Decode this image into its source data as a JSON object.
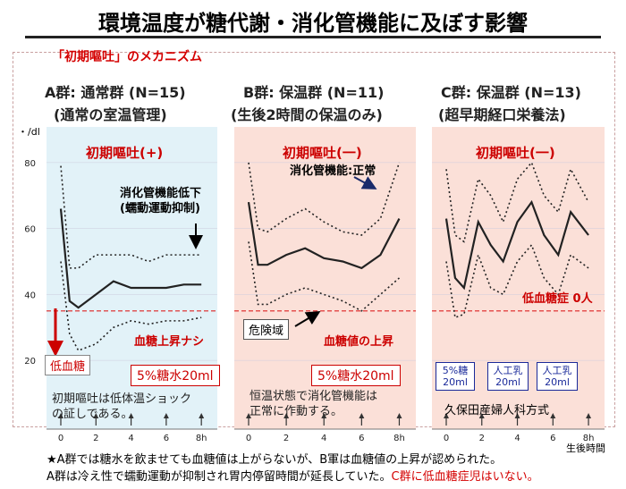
{
  "title": "環境温度が糖代謝・消化管機能に及ぼす影響",
  "subtitle": "「初期嘔吐」のメカニズム",
  "y_unit": "・/dl",
  "x_unit": "生後時間",
  "chart_data": [
    {
      "type": "line",
      "group": "A群: 通常群 (N=15)",
      "group_sub": "(通常の室温管理)",
      "background": "#e2f2f8",
      "x": [
        0,
        0.5,
        1,
        2,
        3,
        4,
        5,
        6,
        7,
        8
      ],
      "x_ticks": [
        "0",
        "2",
        "4",
        "6",
        "8h"
      ],
      "y_ticks": [
        20,
        40,
        60,
        80
      ],
      "ylim": [
        10,
        90
      ],
      "threshold": 35,
      "series": [
        {
          "style": "solid",
          "values": [
            66,
            38,
            36,
            40,
            44,
            42,
            42,
            42,
            43,
            43
          ]
        },
        {
          "style": "dotted-upper",
          "values": [
            79,
            48,
            48,
            52,
            52,
            52,
            50,
            52,
            52,
            52
          ]
        },
        {
          "style": "dotted-lower",
          "values": [
            50,
            28,
            23,
            25,
            30,
            32,
            31,
            32,
            32,
            33
          ]
        }
      ],
      "heading": "初期嘔吐(+)",
      "callout": [
        "消化管機能低下",
        "(蠕動運動抑制)"
      ],
      "box_label": "低血糖",
      "red_text": "血糖上昇ナシ",
      "red_box": "5%糖水20ml",
      "note": [
        "初期嘔吐は低体温ショック",
        "の証しである。"
      ]
    },
    {
      "type": "line",
      "group": "B群: 保温群 (N=11)",
      "group_sub": "(生後2時間の保温のみ)",
      "background": "#fbe0d8",
      "x": [
        0,
        0.5,
        1,
        2,
        3,
        4,
        5,
        6,
        7,
        8
      ],
      "x_ticks": [
        "0",
        "2",
        "4",
        "6",
        "8h"
      ],
      "y_ticks": [
        20,
        40,
        60,
        80
      ],
      "ylim": [
        10,
        90
      ],
      "threshold": 35,
      "series": [
        {
          "style": "solid",
          "values": [
            68,
            49,
            49,
            52,
            54,
            51,
            50,
            48,
            52,
            63
          ]
        },
        {
          "style": "dotted-upper",
          "values": [
            80,
            60,
            59,
            63,
            66,
            62,
            59,
            58,
            63,
            80
          ]
        },
        {
          "style": "dotted-lower",
          "values": [
            56,
            37,
            37,
            40,
            42,
            40,
            38,
            35,
            40,
            45
          ]
        }
      ],
      "heading": "初期嘔吐(一)",
      "callout": [
        "消化管機能:正常"
      ],
      "box_label": "危険域",
      "red_text": "血糖値の上昇",
      "red_box": "5%糖水20ml",
      "note": [
        "恒温状態で消化管機能は",
        "正常に作動する。"
      ]
    },
    {
      "type": "line",
      "group": "C群: 保温群 (N=13)",
      "group_sub": "(超早期経口栄養法)",
      "background": "#fbe0d8",
      "x": [
        0,
        0.5,
        1,
        1.8,
        2.5,
        3.2,
        4,
        4.8,
        5.5,
        6.3,
        7,
        8
      ],
      "x_ticks": [
        "0",
        "2",
        "4",
        "6",
        "8h"
      ],
      "y_ticks": [
        20,
        40,
        60,
        80
      ],
      "ylim": [
        10,
        90
      ],
      "threshold": 35,
      "series": [
        {
          "style": "solid",
          "values": [
            63,
            45,
            42,
            62,
            55,
            50,
            62,
            68,
            58,
            52,
            65,
            58
          ]
        },
        {
          "style": "dotted-upper",
          "values": [
            78,
            58,
            56,
            75,
            70,
            62,
            75,
            80,
            70,
            65,
            78,
            68
          ]
        },
        {
          "style": "dotted-lower",
          "values": [
            50,
            33,
            34,
            52,
            42,
            40,
            50,
            55,
            45,
            40,
            52,
            48
          ]
        }
      ],
      "heading": "初期嘔吐(一)",
      "red_text": "低血糖症 0人",
      "feeds": [
        [
          "5%糖",
          "20ml"
        ],
        [
          "人工乳",
          "20ml"
        ],
        [
          "人工乳",
          "20ml"
        ]
      ],
      "source": "久保田産婦人科方式"
    }
  ],
  "footer": {
    "line1": "★A群では糖水を飲ませても血糖値は上がらないが、B軍は血糖値の上昇が認められた。",
    "line2a": "A群は冷え性で蠕動運動が抑制され胃内停留時間が延長していた。",
    "line2b": "C群に低血糖症児はいない。"
  }
}
